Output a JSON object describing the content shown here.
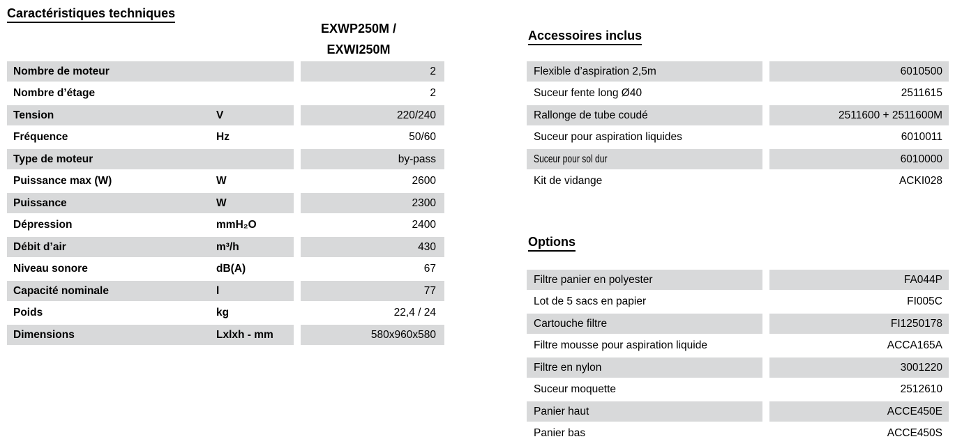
{
  "colors": {
    "row_shade": "#d8d9da",
    "text": "#000000",
    "background": "#ffffff"
  },
  "specs": {
    "title": "Caractéristiques techniques",
    "model_header_line1": "EXWP250M /",
    "model_header_line2": "EXWI250M",
    "rows": [
      {
        "label": "Nombre de moteur",
        "unit": "",
        "value": "2"
      },
      {
        "label": "Nombre d’étage",
        "unit": "",
        "value": "2"
      },
      {
        "label": "Tension",
        "unit": "V",
        "value": "220/240"
      },
      {
        "label": "Fréquence",
        "unit": "Hz",
        "value": "50/60"
      },
      {
        "label": "Type de moteur",
        "unit": "",
        "value": "by-pass"
      },
      {
        "label": "Puissance max (W)",
        "unit": "W",
        "value": "2600"
      },
      {
        "label": "Puissance",
        "unit": "W",
        "value": "2300"
      },
      {
        "label": "Dépression",
        "unit": "mmH₂O",
        "value": "2400"
      },
      {
        "label": "Débit d’air",
        "unit": "m³/h",
        "value": "430"
      },
      {
        "label": "Niveau sonore",
        "unit": "dB(A)",
        "value": "67"
      },
      {
        "label": "Capacité nominale",
        "unit": "l",
        "value": "77"
      },
      {
        "label": "Poids",
        "unit": "kg",
        "value": "22,4 / 24"
      },
      {
        "label": "Dimensions",
        "unit": "Lxlxh - mm",
        "value": "580x960x580"
      }
    ]
  },
  "accessories": {
    "title": "Accessoires inclus",
    "rows": [
      {
        "label": "Flexible d’aspiration 2,5m",
        "value": "6010500"
      },
      {
        "label": "Suceur fente long Ø40",
        "value": "2511615"
      },
      {
        "label": "Rallonge de tube coudé",
        "value": "2511600 + 2511600M"
      },
      {
        "label": "Suceur pour aspiration liquides",
        "value": "6010011"
      },
      {
        "label": "Suceur pour sol dur",
        "value": "6010000"
      },
      {
        "label": "Kit de vidange",
        "value": "ACKI028"
      }
    ]
  },
  "options": {
    "title": "Options",
    "rows": [
      {
        "label": "Filtre panier en polyester",
        "value": "FA044P"
      },
      {
        "label": "Lot de 5 sacs en papier",
        "value": "FI005C"
      },
      {
        "label": "Cartouche filtre",
        "value": "FI1250178"
      },
      {
        "label": "Filtre mousse pour aspiration liquide",
        "value": "ACCA165A"
      },
      {
        "label": "Filtre en nylon",
        "value": "3001220"
      },
      {
        "label": "Suceur moquette",
        "value": "2512610"
      },
      {
        "label": "Panier haut",
        "value": "ACCE450E"
      },
      {
        "label": "Panier bas",
        "value": "ACCE450S"
      }
    ]
  }
}
